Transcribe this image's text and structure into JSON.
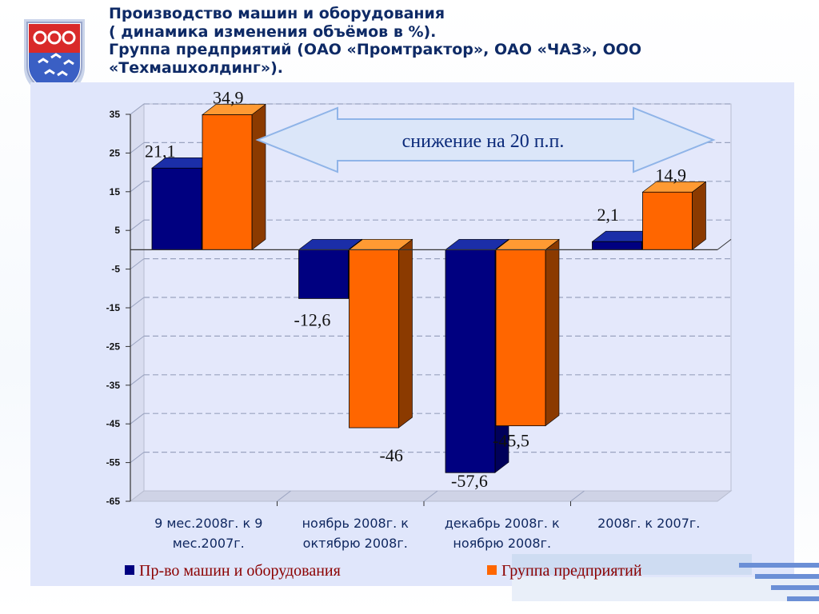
{
  "header": {
    "lines": [
      "Производство машин и оборудования",
      "( динамика изменения объёмов в %).",
      "Группа предприятий (ОАО «Промтрактор», ОАО «ЧАЗ», ООО",
      "«Техмашхолдинг»)."
    ]
  },
  "arrow_label": "снижение на 20 п.п.",
  "colors": {
    "series1": "#000080",
    "series2": "#ff6600",
    "label_text": "#111111",
    "legend_text": "#8b0000",
    "title_text": "#0e2a66"
  },
  "chart_data": {
    "type": "bar",
    "categories": [
      [
        "9 мес.2008г. к 9",
        "мес.2007г."
      ],
      [
        "ноябрь 2008г. к",
        "октябрю 2008г."
      ],
      [
        "декабрь 2008г. к",
        "ноябрю 2008г."
      ],
      [
        "2008г. к 2007г."
      ]
    ],
    "series": [
      {
        "name": "Пр-во машин и оборудования",
        "values": [
          21.1,
          -12.6,
          -57.6,
          2.1
        ],
        "labels": [
          "21,1",
          "-12,6",
          "-57,6",
          "2,1"
        ]
      },
      {
        "name": "Группа предприятий",
        "values": [
          34.9,
          -46,
          -45.5,
          14.9
        ],
        "labels": [
          "34,9",
          "-46",
          "-45,5",
          "14,9"
        ]
      }
    ],
    "yticks": [
      35,
      25,
      15,
      5,
      -5,
      -15,
      -25,
      -35,
      -45,
      -55,
      -65
    ],
    "ylim": [
      -65,
      35
    ],
    "grid": true,
    "legend_position": "bottom"
  }
}
